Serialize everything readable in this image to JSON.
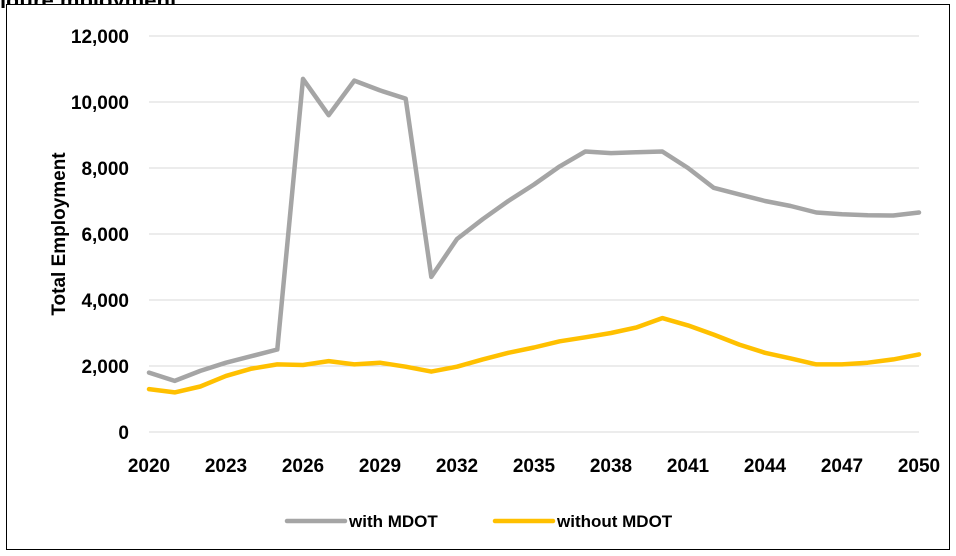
{
  "heading": "igure     mployment",
  "chart_data": {
    "type": "line",
    "ylabel": "Total Employment",
    "xlabel": "",
    "ylim": [
      0,
      12000
    ],
    "yticks": [
      0,
      2000,
      4000,
      6000,
      8000,
      10000,
      12000
    ],
    "ytick_labels": [
      "0",
      "2,000",
      "4,000",
      "6,000",
      "8,000",
      "10,000",
      "12,000"
    ],
    "xlim": [
      2020,
      2050
    ],
    "xticks": [
      2020,
      2023,
      2026,
      2029,
      2032,
      2035,
      2038,
      2041,
      2044,
      2047,
      2050
    ],
    "xtick_labels": [
      "2020",
      "2023",
      "2026",
      "2029",
      "2032",
      "2035",
      "2038",
      "2041",
      "2044",
      "2047",
      "2050"
    ],
    "grid": "horizontal",
    "legend_position": "bottom",
    "x": [
      2020,
      2021,
      2022,
      2023,
      2024,
      2025,
      2026,
      2027,
      2028,
      2029,
      2030,
      2031,
      2032,
      2033,
      2034,
      2035,
      2036,
      2037,
      2038,
      2039,
      2040,
      2041,
      2042,
      2043,
      2044,
      2045,
      2046,
      2047,
      2048,
      2049,
      2050
    ],
    "series": [
      {
        "name": "with MDOT",
        "color": "#A5A5A5",
        "values": [
          1800,
          1550,
          1850,
          2100,
          2300,
          2500,
          10700,
          9600,
          10650,
          10350,
          10100,
          4700,
          5850,
          6450,
          7000,
          7500,
          8050,
          8500,
          8450,
          8480,
          8500,
          8000,
          7400,
          7200,
          7000,
          6850,
          6650,
          6600,
          6570,
          6560,
          6650
        ]
      },
      {
        "name": "without MDOT",
        "color": "#FFC000",
        "values": [
          1300,
          1200,
          1380,
          1700,
          1920,
          2050,
          2030,
          2150,
          2050,
          2100,
          1980,
          1830,
          1980,
          2200,
          2400,
          2560,
          2750,
          2870,
          3000,
          3170,
          3450,
          3230,
          2950,
          2650,
          2400,
          2230,
          2050,
          2050,
          2100,
          2200,
          2350
        ]
      }
    ]
  }
}
